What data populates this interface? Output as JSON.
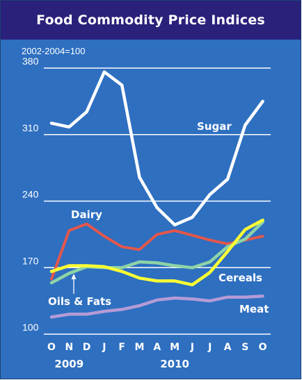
{
  "chart_data": {
    "type": "line",
    "title": "Food Commodity Price Indices",
    "subtitle": "2002-2004=100",
    "x": [
      "O",
      "N",
      "D",
      "J",
      "F",
      "M",
      "A",
      "M",
      "J",
      "J",
      "A",
      "S",
      "O"
    ],
    "year_labels": [
      "2009",
      "2010"
    ],
    "ylim": [
      100,
      380
    ],
    "yticks": [
      "100",
      "170",
      "240",
      "310",
      "380"
    ],
    "grid": true,
    "series": [
      {
        "name": "Sugar",
        "color": "#ffffff",
        "values": [
          322,
          318,
          334,
          376,
          362,
          265,
          233,
          215,
          223,
          247,
          263,
          320,
          345
        ]
      },
      {
        "name": "Dairy",
        "color": "#e2574c",
        "values": [
          158,
          209,
          216,
          203,
          192,
          189,
          205,
          209,
          204,
          199,
          195,
          199,
          203
        ]
      },
      {
        "name": "Cereals",
        "color": "#ffff33",
        "values": [
          166,
          172,
          172,
          171,
          166,
          159,
          156,
          156,
          152,
          165,
          187,
          210,
          220
        ]
      },
      {
        "name": "Oils & Fats",
        "color": "#8ed3a7",
        "values": [
          154,
          164,
          171,
          170,
          170,
          176,
          175,
          172,
          170,
          176,
          192,
          200,
          218
        ]
      },
      {
        "name": "Meat",
        "color": "#b49bd6",
        "values": [
          118,
          121,
          121,
          124,
          126,
          130,
          136,
          138,
          137,
          135,
          139,
          139,
          140
        ]
      }
    ]
  }
}
